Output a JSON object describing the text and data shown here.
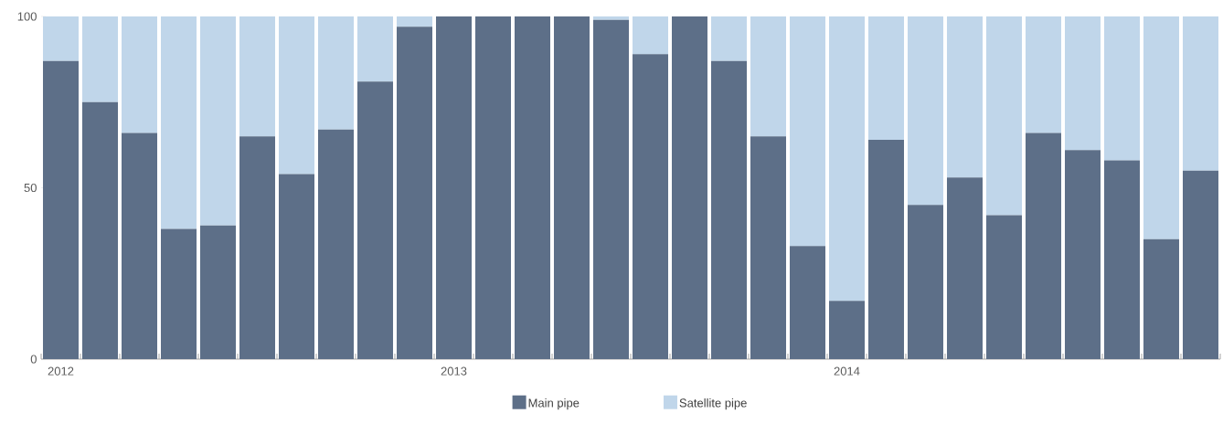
{
  "chart_data": {
    "type": "bar",
    "stacked": true,
    "categories": [
      "2012",
      null,
      null,
      null,
      null,
      null,
      null,
      null,
      null,
      null,
      "2013",
      null,
      null,
      null,
      null,
      null,
      null,
      null,
      null,
      null,
      "2014",
      null,
      null,
      null,
      null,
      null,
      null,
      null,
      null,
      null
    ],
    "series": [
      {
        "name": "Main pipe",
        "color": "#5d6f88",
        "values": [
          87,
          75,
          66,
          38,
          39,
          65,
          54,
          67,
          81,
          97,
          100,
          100,
          100,
          100,
          99,
          89,
          100,
          87,
          65,
          33,
          17,
          64,
          45,
          53,
          42,
          66,
          61,
          58,
          35,
          55
        ]
      },
      {
        "name": "Satellite pipe",
        "color": "#c0d6ea",
        "values": [
          13,
          25,
          34,
          62,
          61,
          35,
          46,
          33,
          19,
          3,
          0,
          0,
          0,
          0,
          1,
          11,
          0,
          13,
          35,
          67,
          83,
          36,
          55,
          47,
          58,
          34,
          39,
          42,
          65,
          45
        ]
      }
    ],
    "ylim": [
      0,
      100
    ],
    "yticks": [
      0,
      50,
      100
    ],
    "grid": false,
    "legend": "bottom"
  }
}
